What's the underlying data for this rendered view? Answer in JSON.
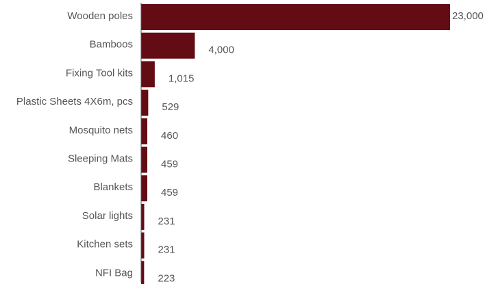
{
  "chart_data": {
    "type": "bar",
    "orientation": "horizontal",
    "categories": [
      "Wooden poles",
      "Bamboos",
      "Fixing Tool kits",
      "Plastic Sheets 4X6m, pcs",
      "Mosquito nets",
      "Sleeping Mats",
      "Blankets",
      "Solar lights",
      "Kitchen sets",
      "NFI Bag"
    ],
    "values": [
      23000,
      4000,
      1015,
      529,
      460,
      459,
      459,
      231,
      231,
      223
    ],
    "value_labels": [
      "23,000",
      "4,000",
      "1,015",
      "529",
      "460",
      "459",
      "459",
      "231",
      "231",
      "223"
    ],
    "title": "",
    "xlabel": "",
    "ylabel": "",
    "xlim": [
      0,
      23000
    ],
    "grid": false,
    "legend": "none",
    "colors": {
      "bar": "#640c14",
      "text": "#555555",
      "axis": "#555555"
    }
  }
}
